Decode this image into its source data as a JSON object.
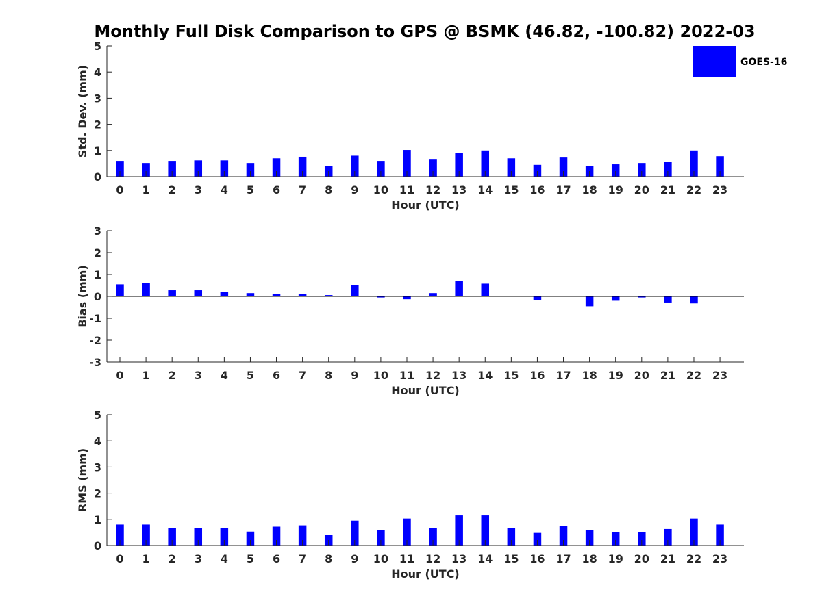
{
  "figure": {
    "title": "Monthly Full Disk Comparison to GPS @ BSMK (46.82, -100.82) 2022-03"
  },
  "legend": {
    "label": "GOES-16",
    "color": "#0000ff",
    "placement": "top-right"
  },
  "chart_data": [
    {
      "type": "bar",
      "id": "std",
      "xlabel": "Hour (UTC)",
      "ylabel": "Std. Dev. (mm)",
      "ylim": [
        0,
        5
      ],
      "yticks": [
        0,
        1,
        2,
        3,
        4,
        5
      ],
      "categories": [
        "0",
        "1",
        "2",
        "3",
        "4",
        "5",
        "6",
        "7",
        "8",
        "9",
        "10",
        "11",
        "12",
        "13",
        "14",
        "15",
        "16",
        "17",
        "18",
        "19",
        "20",
        "21",
        "22",
        "23"
      ],
      "series": [
        {
          "name": "GOES-16",
          "color": "#0000ff",
          "values": [
            0.6,
            0.52,
            0.6,
            0.62,
            0.62,
            0.52,
            0.7,
            0.76,
            0.4,
            0.8,
            0.6,
            1.02,
            0.65,
            0.9,
            1.0,
            0.7,
            0.45,
            0.73,
            0.4,
            0.47,
            0.52,
            0.55,
            1.0,
            0.78
          ]
        }
      ]
    },
    {
      "type": "bar",
      "id": "bias",
      "xlabel": "Hour (UTC)",
      "ylabel": "Bias (mm)",
      "ylim": [
        -3,
        3
      ],
      "yticks": [
        -3,
        -2,
        -1,
        0,
        1,
        2,
        3
      ],
      "zero_line": true,
      "categories": [
        "0",
        "1",
        "2",
        "3",
        "4",
        "5",
        "6",
        "7",
        "8",
        "9",
        "10",
        "11",
        "12",
        "13",
        "14",
        "15",
        "16",
        "17",
        "18",
        "19",
        "20",
        "21",
        "22",
        "23"
      ],
      "series": [
        {
          "name": "GOES-16",
          "color": "#0000ff",
          "values": [
            0.55,
            0.62,
            0.28,
            0.28,
            0.2,
            0.15,
            0.1,
            0.1,
            0.06,
            0.5,
            -0.05,
            -0.13,
            0.15,
            0.7,
            0.58,
            0.03,
            -0.17,
            -0.01,
            -0.45,
            -0.2,
            -0.05,
            -0.28,
            -0.32,
            0.02
          ]
        }
      ]
    },
    {
      "type": "bar",
      "id": "rms",
      "xlabel": "Hour (UTC)",
      "ylabel": "RMS (mm)",
      "ylim": [
        0,
        5
      ],
      "yticks": [
        0,
        1,
        2,
        3,
        4,
        5
      ],
      "categories": [
        "0",
        "1",
        "2",
        "3",
        "4",
        "5",
        "6",
        "7",
        "8",
        "9",
        "10",
        "11",
        "12",
        "13",
        "14",
        "15",
        "16",
        "17",
        "18",
        "19",
        "20",
        "21",
        "22",
        "23"
      ],
      "series": [
        {
          "name": "GOES-16",
          "color": "#0000ff",
          "values": [
            0.8,
            0.8,
            0.66,
            0.68,
            0.66,
            0.53,
            0.72,
            0.77,
            0.4,
            0.95,
            0.58,
            1.03,
            0.68,
            1.15,
            1.15,
            0.68,
            0.48,
            0.75,
            0.6,
            0.5,
            0.5,
            0.63,
            1.03,
            0.8
          ]
        }
      ]
    }
  ]
}
